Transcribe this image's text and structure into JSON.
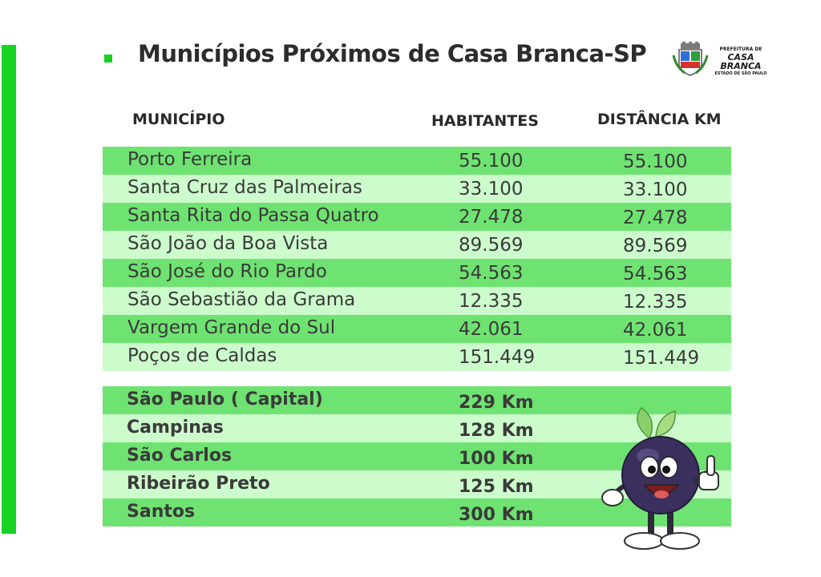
{
  "header": {
    "title": "Municípios Próximos de Casa Branca-SP"
  },
  "logo": {
    "line1": "PREFEITURA DE",
    "line2": "CASA BRANCA",
    "line3": "ESTADO DE SÃO PAULO"
  },
  "table": {
    "columns": [
      "MUNICÍPIO",
      "HABITANTES",
      "DISTÂNCIA KM"
    ],
    "rows": [
      {
        "name": "Porto Ferreira",
        "habitantes": "55.100",
        "distancia": "55.100"
      },
      {
        "name": "Santa Cruz das Palmeiras",
        "habitantes": "33.100",
        "distancia": "33.100"
      },
      {
        "name": "Santa Rita do Passa Quatro",
        "habitantes": "27.478",
        "distancia": "27.478"
      },
      {
        "name": "São João da Boa Vista",
        "habitantes": "89.569",
        "distancia": "89.569"
      },
      {
        "name": "São José do Rio Pardo",
        "habitantes": "54.563",
        "distancia": "54.563"
      },
      {
        "name": "São Sebastião da Grama",
        "habitantes": "12.335",
        "distancia": "12.335"
      },
      {
        "name": "Vargem Grande do Sul",
        "habitantes": "42.061",
        "distancia": "42.061"
      },
      {
        "name": "Poços de Caldas",
        "habitantes": "151.449",
        "distancia": "151.449"
      }
    ]
  },
  "cities": [
    {
      "name": "São Paulo ( Capital)",
      "distance": "229 Km"
    },
    {
      "name": "Campinas",
      "distance": "128 Km"
    },
    {
      "name": "São Carlos",
      "distance": "100 Km"
    },
    {
      "name": "Ribeirão Preto",
      "distance": "125 Km"
    },
    {
      "name": "Santos",
      "distance": "300 Km"
    }
  ],
  "colors": {
    "accent": "#19d323",
    "row_dark": "#6fe371",
    "row_light": "#ccfccc"
  },
  "icons": {
    "logo": "city-coat-of-arms-icon",
    "mascot": "grape-mascot-thumbs-up"
  }
}
